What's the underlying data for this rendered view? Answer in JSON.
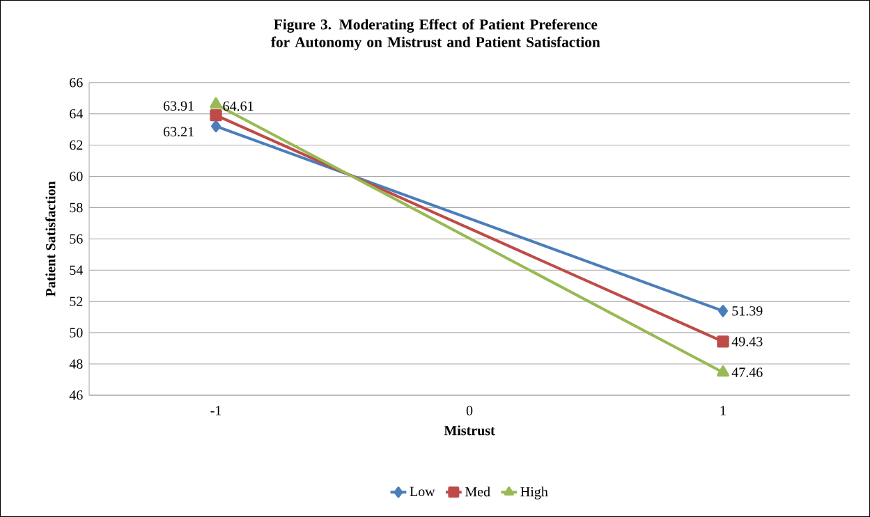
{
  "chart_data": {
    "type": "line",
    "title": "Figure 3.  Moderating Effect of Patient Preference for Autonomy on Mistrust and Patient Satisfaction",
    "xlabel": "Mistrust",
    "ylabel": "Patient Satisfaction",
    "x": [
      -1,
      1
    ],
    "xlim": [
      -1.5,
      1.5
    ],
    "xticks": [
      -1,
      0,
      1
    ],
    "ylim": [
      46,
      66
    ],
    "yticks": [
      46,
      48,
      50,
      52,
      54,
      56,
      58,
      60,
      62,
      64,
      66
    ],
    "grid": "y",
    "legend": "bottom",
    "line_style": "solid",
    "series": [
      {
        "name": "Low",
        "color": "#4a7ebb",
        "marker": "diamond",
        "values": [
          63.21,
          51.39
        ],
        "value_labels": [
          "63.21",
          "51.39"
        ]
      },
      {
        "name": "Med",
        "color": "#be4b48",
        "marker": "square",
        "values": [
          63.91,
          49.43
        ],
        "value_labels": [
          "63.91",
          "49.43"
        ]
      },
      {
        "name": "High",
        "color": "#98b954",
        "marker": "triangle",
        "values": [
          64.61,
          47.46
        ],
        "value_labels": [
          "64.61",
          "47.46"
        ]
      }
    ]
  }
}
